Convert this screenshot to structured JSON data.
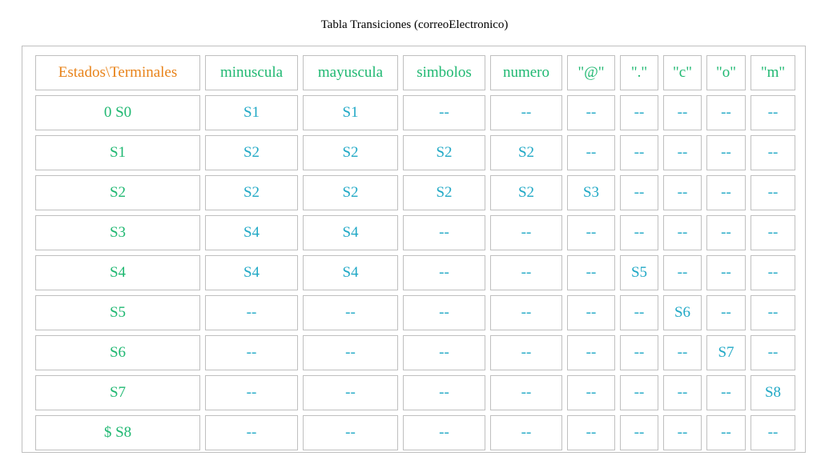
{
  "title": "Tabla Transiciones (correoElectronico)",
  "colors": {
    "corner_header": "#e8831a",
    "header_and_states": "#20b872",
    "transition_cells": "#22a9c6",
    "cell_border": "#c0c0c0"
  },
  "table": {
    "corner": "Estados\\Terminales",
    "columns": [
      "minuscula",
      "mayuscula",
      "simbolos",
      "numero",
      "\"@\"",
      "\".\"",
      "\"c\"",
      "\"o\"",
      "\"m\""
    ],
    "rows": [
      {
        "state": "0 S0",
        "cells": [
          "S1",
          "S1",
          "--",
          "--",
          "--",
          "--",
          "--",
          "--",
          "--"
        ]
      },
      {
        "state": "S1",
        "cells": [
          "S2",
          "S2",
          "S2",
          "S2",
          "--",
          "--",
          "--",
          "--",
          "--"
        ]
      },
      {
        "state": "S2",
        "cells": [
          "S2",
          "S2",
          "S2",
          "S2",
          "S3",
          "--",
          "--",
          "--",
          "--"
        ]
      },
      {
        "state": "S3",
        "cells": [
          "S4",
          "S4",
          "--",
          "--",
          "--",
          "--",
          "--",
          "--",
          "--"
        ]
      },
      {
        "state": "S4",
        "cells": [
          "S4",
          "S4",
          "--",
          "--",
          "--",
          "S5",
          "--",
          "--",
          "--"
        ]
      },
      {
        "state": "S5",
        "cells": [
          "--",
          "--",
          "--",
          "--",
          "--",
          "--",
          "S6",
          "--",
          "--"
        ]
      },
      {
        "state": "S6",
        "cells": [
          "--",
          "--",
          "--",
          "--",
          "--",
          "--",
          "--",
          "S7",
          "--"
        ]
      },
      {
        "state": "S7",
        "cells": [
          "--",
          "--",
          "--",
          "--",
          "--",
          "--",
          "--",
          "--",
          "S8"
        ]
      },
      {
        "state": "$  S8",
        "cells": [
          "--",
          "--",
          "--",
          "--",
          "--",
          "--",
          "--",
          "--",
          "--"
        ]
      }
    ]
  }
}
